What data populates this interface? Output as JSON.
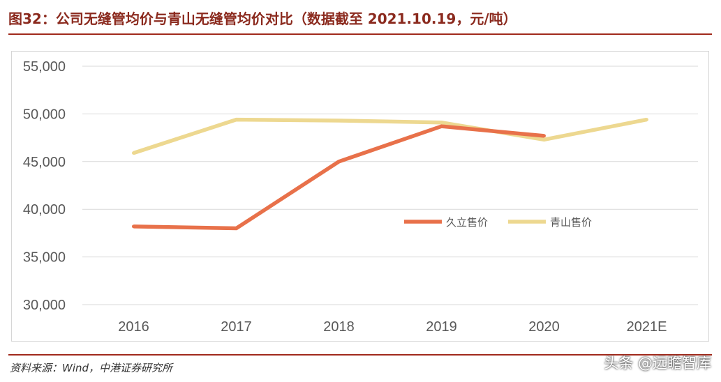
{
  "header": {
    "title": "图32：公司无缝管均价与青山无缝管均价对比（数据截至 2021.10.19，元/吨）"
  },
  "footer": {
    "source": "资料来源：Wind，中港证券研究所",
    "watermark": "头条 @远瞻智库"
  },
  "colors": {
    "accent": "#A0291B",
    "jiuli": "#E8714A",
    "qingshan": "#EDD890",
    "grid": "#d9d9d9",
    "tick": "#595959"
  },
  "chart_data": {
    "type": "line",
    "title": "图32：公司无缝管均价与青山无缝管均价对比（数据截至 2021.10.19，元/吨）",
    "categories": [
      "2016",
      "2017",
      "2018",
      "2019",
      "2020",
      "2021E"
    ],
    "series": [
      {
        "name": "久立售价",
        "color": "#E8714A",
        "values": [
          38200,
          38000,
          45000,
          48700,
          47700,
          null
        ]
      },
      {
        "name": "青山售价",
        "color": "#EDD890",
        "values": [
          45900,
          49400,
          49300,
          49100,
          47300,
          49400
        ]
      }
    ],
    "yticks": [
      "30,000",
      "35,000",
      "40,000",
      "45,000",
      "50,000",
      "55,000"
    ],
    "ylim": [
      30000,
      55000
    ],
    "xlabel": "",
    "ylabel": "",
    "grid": true,
    "legend": "center-right"
  }
}
